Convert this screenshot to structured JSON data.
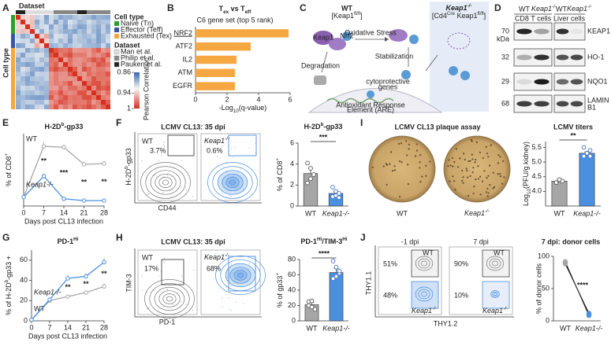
{
  "figure": {
    "labels": [
      "A",
      "B",
      "C",
      "D",
      "E",
      "F",
      "G",
      "H",
      "I",
      "J"
    ],
    "ko": [
      "Keap1",
      "-/-"
    ],
    "a": {
      "dataset": "Dataset",
      "cell_type": "Cell type",
      "legend": {
        "cell_type": "Cell type",
        "cell_types": [
          "Naive (Tn)",
          "Effector (Teff)",
          "Exhausted (Tex)"
        ],
        "cell_type_colors": [
          "#2ca02c",
          "#3a55a4",
          "#f4a640"
        ],
        "dataset": "Dataset",
        "datasets": [
          "Man et al.",
          "Philip et al.",
          "Pauken et al."
        ],
        "dataset_colors": [
          "#dddddd",
          "#888888",
          "#222222"
        ]
      },
      "colorbar": {
        "title": "Pearson Correlation",
        "lim": [
          0.86,
          1
        ],
        "ticks": [
          0.86,
          0.94,
          1
        ]
      }
    },
    "c": {
      "wt": "WT",
      "wt_geno": [
        "[Keap1",
        "fl/fl",
        "]"
      ],
      "ko_geno": [
        "[Cd4",
        "Cre",
        " Keap1",
        "fl/fl",
        "]"
      ],
      "oxidative": "Oxidative Stress",
      "degradation": "Degradation",
      "stabilization": "Stabilization",
      "genes1": "cytoprotective",
      "genes2": "genes",
      "are1": "Antioxidant Response",
      "are2": "Element (ARE)",
      "keap1": "Keap1",
      "nrf2": "Nrf2"
    },
    "d": {
      "wt": "WT",
      "cd8": "CD8 T cells",
      "liver": "Liver cells",
      "proteins": [
        "KEAP1",
        "HO-1",
        "NQO1",
        "LAMIN"
      ],
      "protein_extra": "B1",
      "kda": "kDa",
      "kda_values": [
        70,
        32,
        29,
        68
      ]
    },
    "f": {
      "title": "LCMV CL13: 35 dpi",
      "wt": "WT",
      "y": [
        "H-2D",
        "b",
        "-gp33"
      ],
      "x": "CD44",
      "gates": [
        "3.7%",
        "0.6%"
      ]
    },
    "h": {
      "title": "LCMV CL13: 35 dpi",
      "wt": "WT",
      "y": "TIM-3",
      "x": "PD-1",
      "gates": [
        "17%",
        "68%"
      ]
    },
    "i": {
      "title": "LCMV CL13 plaque assay",
      "wt": "WT"
    },
    "j": {
      "times": [
        "-1 dpi",
        "7 dpi"
      ],
      "wt": "WT",
      "y": "THY1.1",
      "x": "THY1.2",
      "gates": [
        [
          "51%",
          "48%"
        ],
        [
          "90%",
          "10%"
        ]
      ]
    }
  },
  "chart_data": [
    {
      "type": "bar",
      "horizontal": true,
      "title": [
        "T",
        "ex",
        " vs T",
        "eff"
      ],
      "subtitle": "C6 gene set (top 5 rank)",
      "categories": [
        "NRF2",
        "ATF2",
        "IL2",
        "ATM",
        "EGFR"
      ],
      "values": [
        5.9,
        3.5,
        2.6,
        2.5,
        2.5
      ],
      "color": "#f5a742",
      "underline": 0,
      "xlim": [
        0,
        6
      ],
      "xticks": [
        0,
        2,
        4,
        6
      ],
      "xlabel": [
        "-Log",
        "10",
        "(q-value)"
      ]
    },
    {
      "type": "line",
      "title": [
        "H-2D",
        "b",
        "-gp33"
      ],
      "x": [
        0,
        7,
        14,
        21,
        28
      ],
      "xlim": [
        0,
        28
      ],
      "xticks": [
        0,
        7,
        14,
        21,
        28
      ],
      "ylim": [
        0,
        8
      ],
      "xlabel": "Days post CL13 infection",
      "ylabel": [
        "% of CD8",
        "+"
      ],
      "series": [
        {
          "name": "WT",
          "color": "#a6a6a6",
          "values": [
            1.0,
            6.6,
            6.5,
            4.6,
            4.7
          ],
          "errors": [
            0,
            0.5,
            0.3,
            0.3,
            0.3
          ]
        },
        {
          "name": "Keap1-/-",
          "color": "#4a8fe0",
          "values": [
            1.0,
            3.3,
            0.8,
            0.6,
            0.6
          ],
          "errors": [
            0,
            0.3,
            0.1,
            0.1,
            0.1
          ]
        }
      ],
      "annotations": [
        "**",
        "***",
        "**",
        "**"
      ],
      "annotation_x": [
        7,
        14,
        21,
        28
      ]
    },
    {
      "type": "line",
      "title": [
        "PD-1",
        "Hi"
      ],
      "x": [
        0,
        7,
        14,
        21,
        28
      ],
      "xlim": [
        0,
        28
      ],
      "xticks": [
        0,
        7,
        14,
        21,
        28
      ],
      "ylim": [
        0,
        70
      ],
      "yticks": [
        0,
        20,
        40,
        60
      ],
      "xlabel": "Days post CL13 infection",
      "ylabel": [
        "% of H-2D",
        "b",
        "-gp33 +"
      ],
      "series": [
        {
          "name": "WT",
          "color": "#a6a6a6",
          "values": [
            1,
            20,
            24,
            28,
            34
          ],
          "errors": [
            0,
            2,
            2,
            2,
            3
          ]
        },
        {
          "name": "Keap1-/-",
          "color": "#4a8fe0",
          "values": [
            1,
            21,
            42,
            44,
            58
          ],
          "errors": [
            0,
            2,
            3,
            3,
            4
          ]
        }
      ],
      "annotations": [
        "**",
        "**",
        "**"
      ],
      "annotation_x": [
        14,
        21,
        28
      ]
    },
    {
      "type": "bar",
      "title": [
        "H-2D",
        "b",
        "-gp33"
      ],
      "categories": [
        "WT",
        "Keap1-/-"
      ],
      "colors": [
        "#a6a6a6",
        "#4a8fe0"
      ],
      "values": [
        3.1,
        1.2
      ],
      "errors": [
        0.5,
        0.2
      ],
      "points": [
        [
          4.1,
          3.6,
          3.0,
          2.2,
          2.6
        ],
        [
          1.8,
          1.4,
          1.2,
          0.9,
          1.0,
          0.8
        ]
      ],
      "ylim": [
        0,
        6
      ],
      "yticks": [
        0,
        2,
        4,
        6
      ],
      "ylabel": [
        "% of CD8",
        "+"
      ],
      "annotation": "***"
    },
    {
      "type": "bar",
      "title": [
        "PD-1",
        "Hi",
        "/TIM-3",
        "Hi"
      ],
      "categories": [
        "WT",
        "Keap1-/-"
      ],
      "colors": [
        "#a6a6a6",
        "#4a8fe0"
      ],
      "values": [
        21,
        63
      ],
      "errors": [
        3,
        5
      ],
      "points": [
        [
          25,
          18,
          15,
          20,
          26
        ],
        [
          78,
          70,
          62,
          55,
          58,
          65
        ]
      ],
      "ylim": [
        0,
        80
      ],
      "yticks": [
        0,
        20,
        40,
        60,
        80
      ],
      "ylabel": [
        "% of gp33",
        "+"
      ],
      "annotation": "****"
    },
    {
      "type": "bar",
      "title": "LCMV titers",
      "categories": [
        "WT",
        "Keap1-/-"
      ],
      "colors": [
        "#a6a6a6",
        "#4a8fe0"
      ],
      "values": [
        4.35,
        5.3
      ],
      "errors": [
        0.05,
        0.05
      ],
      "points": [
        [
          4.3,
          4.4,
          4.35,
          4.3,
          4.4
        ],
        [
          5.2,
          5.3,
          5.4,
          5.5,
          5.3,
          5.2
        ]
      ],
      "ylim": [
        3.5,
        5.7
      ],
      "yticks": [
        {
          "value": 4,
          "label": "4.0"
        },
        4.5,
        {
          "value": 5,
          "label": "5.0"
        },
        5.5
      ],
      "ylabel": [
        "Log",
        "10",
        "(PFU/g kidney)"
      ],
      "annotation": "**"
    },
    {
      "type": "dot",
      "title": "7 dpi: donor cells",
      "categories": [
        "WT",
        "Keap1-/-"
      ],
      "colors": [
        "#a6a6a6",
        "#4a8fe0"
      ],
      "values": [
        90,
        10
      ],
      "points": [
        [
          92,
          90,
          89,
          91,
          88
        ],
        [
          8,
          10,
          11,
          9,
          12
        ]
      ],
      "ylim": [
        0,
        100
      ],
      "yticks": [
        0,
        50,
        100
      ],
      "ylabel": "% of donor cells",
      "annotation": "****"
    }
  ]
}
